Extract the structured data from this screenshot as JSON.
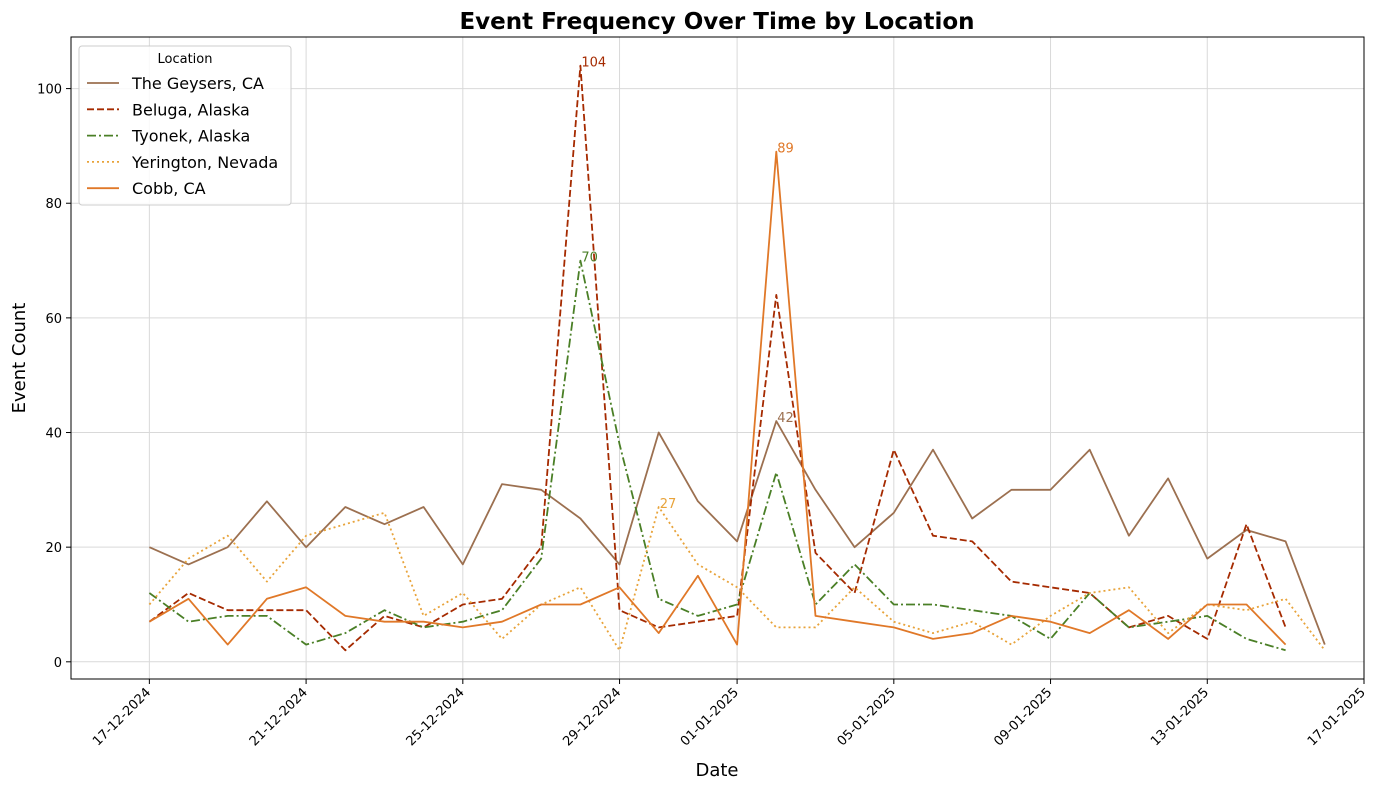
{
  "chart_data": {
    "type": "line",
    "title": "Event Frequency Over Time by Location",
    "xlabel": "Date",
    "ylabel": "Event Count",
    "x_range": [
      "2024-12-15",
      "2025-01-17"
    ],
    "ylim": [
      -3,
      109
    ],
    "x_ticks": [
      "2024-12-17",
      "2024-12-21",
      "2024-12-25",
      "2024-12-29",
      "2025-01-01",
      "2025-01-05",
      "2025-01-09",
      "2025-01-13",
      "2025-01-17"
    ],
    "x_tick_labels": [
      "17-12-2024",
      "21-12-2024",
      "25-12-2024",
      "29-12-2024",
      "01-01-2025",
      "05-01-2025",
      "09-01-2025",
      "13-01-2025",
      "17-01-2025"
    ],
    "y_ticks": [
      0,
      20,
      40,
      60,
      80,
      100
    ],
    "y_tick_labels": [
      "0",
      "20",
      "40",
      "60",
      "80",
      "100"
    ],
    "grid": true,
    "legend": {
      "title": "Location",
      "placement": "upper-left"
    },
    "series": [
      {
        "name": "The Geysers, CA",
        "color": "#9c7050",
        "dash": "solid",
        "x": [
          "2024-12-17",
          "2024-12-18",
          "2024-12-19",
          "2024-12-20",
          "2024-12-21",
          "2024-12-22",
          "2024-12-23",
          "2024-12-24",
          "2024-12-25",
          "2024-12-26",
          "2024-12-27",
          "2024-12-28",
          "2024-12-29",
          "2024-12-30",
          "2024-12-31",
          "2025-01-01",
          "2025-01-02",
          "2025-01-03",
          "2025-01-04",
          "2025-01-05",
          "2025-01-06",
          "2025-01-07",
          "2025-01-08",
          "2025-01-09",
          "2025-01-10",
          "2025-01-11",
          "2025-01-12",
          "2025-01-13",
          "2025-01-14",
          "2025-01-15",
          "2025-01-16"
        ],
        "values": [
          20,
          17,
          20,
          28,
          20,
          27,
          24,
          27,
          17,
          31,
          30,
          25,
          17,
          40,
          28,
          21,
          42,
          30,
          20,
          26,
          37,
          25,
          30,
          30,
          37,
          22,
          32,
          18,
          23,
          21,
          3
        ]
      },
      {
        "name": "Beluga, Alaska",
        "color": "#a52a00",
        "dash": "dashed",
        "x": [
          "2024-12-17",
          "2024-12-18",
          "2024-12-19",
          "2024-12-20",
          "2024-12-21",
          "2024-12-22",
          "2024-12-23",
          "2024-12-24",
          "2024-12-25",
          "2024-12-26",
          "2024-12-27",
          "2024-12-28",
          "2024-12-29",
          "2024-12-30",
          "2024-12-31",
          "2025-01-01",
          "2025-01-02",
          "2025-01-03",
          "2025-01-04",
          "2025-01-05",
          "2025-01-06",
          "2025-01-07",
          "2025-01-08",
          "2025-01-09",
          "2025-01-10",
          "2025-01-11",
          "2025-01-12",
          "2025-01-13",
          "2025-01-14",
          "2025-01-15"
        ],
        "values": [
          7,
          12,
          9,
          9,
          9,
          2,
          8,
          6,
          10,
          11,
          20,
          104,
          9,
          6,
          7,
          8,
          64,
          19,
          12,
          37,
          22,
          21,
          14,
          13,
          12,
          6,
          8,
          4,
          24,
          6
        ]
      },
      {
        "name": "Tyonek, Alaska",
        "color": "#4a7f26",
        "dash": "dashdot",
        "x": [
          "2024-12-17",
          "2024-12-18",
          "2024-12-19",
          "2024-12-20",
          "2024-12-21",
          "2024-12-22",
          "2024-12-23",
          "2024-12-24",
          "2024-12-25",
          "2024-12-26",
          "2024-12-27",
          "2024-12-28",
          "2024-12-29",
          "2024-12-30",
          "2024-12-31",
          "2025-01-01",
          "2025-01-02",
          "2025-01-03",
          "2025-01-04",
          "2025-01-05",
          "2025-01-06",
          "2025-01-07",
          "2025-01-08",
          "2025-01-09",
          "2025-01-10",
          "2025-01-11",
          "2025-01-12",
          "2025-01-13",
          "2025-01-14",
          "2025-01-15"
        ],
        "values": [
          12,
          7,
          8,
          8,
          3,
          5,
          9,
          6,
          7,
          9,
          18,
          70,
          38,
          11,
          8,
          10,
          33,
          10,
          17,
          10,
          10,
          9,
          8,
          4,
          12,
          6,
          7,
          8,
          4,
          2
        ]
      },
      {
        "name": "Yerington, Nevada",
        "color": "#e8a33a",
        "dash": "dotted",
        "x": [
          "2024-12-17",
          "2024-12-18",
          "2024-12-19",
          "2024-12-20",
          "2024-12-21",
          "2024-12-22",
          "2024-12-23",
          "2024-12-24",
          "2024-12-25",
          "2024-12-26",
          "2024-12-27",
          "2024-12-28",
          "2024-12-29",
          "2024-12-30",
          "2024-12-31",
          "2025-01-01",
          "2025-01-02",
          "2025-01-03",
          "2025-01-04",
          "2025-01-05",
          "2025-01-06",
          "2025-01-07",
          "2025-01-08",
          "2025-01-09",
          "2025-01-10",
          "2025-01-11",
          "2025-01-12",
          "2025-01-13",
          "2025-01-14",
          "2025-01-15",
          "2025-01-16"
        ],
        "values": [
          10,
          18,
          22,
          14,
          22,
          24,
          26,
          8,
          12,
          4,
          10,
          13,
          2,
          27,
          17,
          13,
          6,
          6,
          13,
          7,
          5,
          7,
          3,
          8,
          12,
          13,
          5,
          10,
          9,
          11,
          2
        ]
      },
      {
        "name": "Cobb, CA",
        "color": "#e07828",
        "dash": "solid",
        "x": [
          "2024-12-17",
          "2024-12-18",
          "2024-12-19",
          "2024-12-20",
          "2024-12-21",
          "2024-12-22",
          "2024-12-23",
          "2024-12-24",
          "2024-12-25",
          "2024-12-26",
          "2024-12-27",
          "2024-12-28",
          "2024-12-29",
          "2024-12-30",
          "2024-12-31",
          "2025-01-01",
          "2025-01-02",
          "2025-01-03",
          "2025-01-04",
          "2025-01-05",
          "2025-01-06",
          "2025-01-07",
          "2025-01-08",
          "2025-01-09",
          "2025-01-10",
          "2025-01-11",
          "2025-01-12",
          "2025-01-13",
          "2025-01-14",
          "2025-01-15"
        ],
        "values": [
          7,
          11,
          3,
          11,
          13,
          8,
          7,
          7,
          6,
          7,
          10,
          10,
          13,
          5,
          15,
          3,
          89,
          8,
          7,
          6,
          4,
          5,
          8,
          7,
          5,
          9,
          4,
          10,
          10,
          3
        ]
      }
    ],
    "annotations": [
      {
        "series": 1,
        "x": "2024-12-28",
        "y": 104,
        "label": "104"
      },
      {
        "series": 2,
        "x": "2024-12-28",
        "y": 70,
        "label": "70"
      },
      {
        "series": 3,
        "x": "2024-12-30",
        "y": 27,
        "label": "27"
      },
      {
        "series": 0,
        "x": "2025-01-02",
        "y": 42,
        "label": "42"
      },
      {
        "series": 4,
        "x": "2025-01-02",
        "y": 89,
        "label": "89"
      }
    ]
  }
}
